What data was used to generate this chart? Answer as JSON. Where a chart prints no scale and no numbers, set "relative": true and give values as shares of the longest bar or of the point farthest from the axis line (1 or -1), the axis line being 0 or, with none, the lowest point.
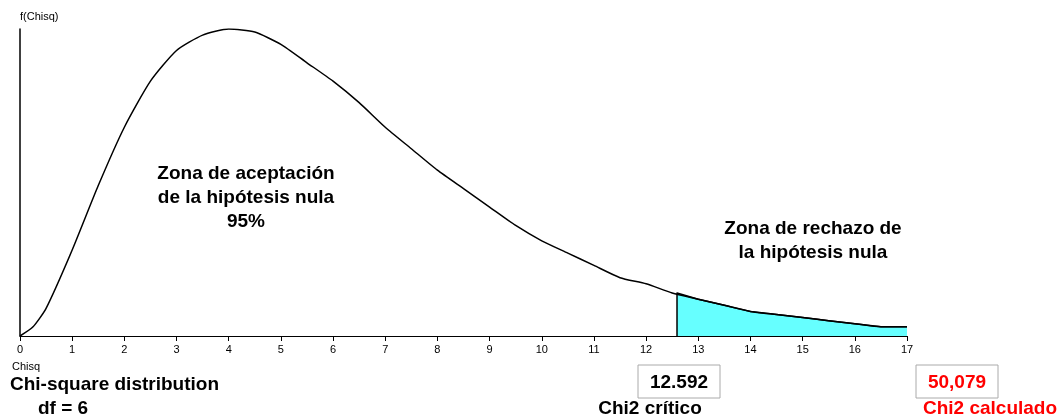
{
  "chart_data": {
    "type": "line",
    "relative": true,
    "xlabel": "Chisq",
    "ylabel": "f(Chisq)",
    "xlim": [
      0,
      17
    ],
    "xticks": [
      0,
      1,
      2,
      3,
      4,
      5,
      6,
      7,
      8,
      9,
      10,
      11,
      12,
      13,
      14,
      15,
      16,
      17
    ],
    "marker": "none",
    "grid": false,
    "series": [
      {
        "color": "#000000",
        "x": [
          0,
          0.25,
          0.5,
          1,
          1.5,
          2,
          2.5,
          3,
          3.5,
          4,
          4.5,
          5,
          5.5,
          6,
          6.5,
          7,
          7.5,
          8,
          8.5,
          9,
          9.5,
          10,
          10.5,
          11,
          11.5,
          12,
          12.5,
          13,
          13.5,
          14,
          14.5,
          15,
          15.5,
          16,
          16.5,
          17
        ],
        "values": [
          0,
          0.03,
          0.09,
          0.28,
          0.49,
          0.68,
          0.83,
          0.93,
          0.98,
          1,
          0.99,
          0.95,
          0.89,
          0.83,
          0.76,
          0.68,
          0.61,
          0.54,
          0.48,
          0.42,
          0.36,
          0.31,
          0.27,
          0.23,
          0.19,
          0.17,
          0.14,
          0.12,
          0.1,
          0.08,
          0.07,
          0.06,
          0.05,
          0.04,
          0.03,
          0.03
        ]
      },
      {
        "type": "area",
        "color": "#66ffff",
        "x": [
          12.592,
          12.592,
          13,
          13.5,
          14,
          14.5,
          15,
          15.5,
          16,
          16.5,
          17
        ],
        "values": [
          0,
          0.14,
          0.12,
          0.1,
          0.08,
          0.07,
          0.06,
          0.05,
          0.04,
          0.03,
          0.03
        ]
      }
    ],
    "annotations": [
      "Zona de aceptación\nde la hipótesis nula\n95%",
      "Zona de rechazo de\nla hipótesis nula",
      "Chi-square distribution",
      "df = 6",
      "12.592",
      "Chi2 crítico",
      "50,079",
      "Chi2 calculado"
    ]
  }
}
